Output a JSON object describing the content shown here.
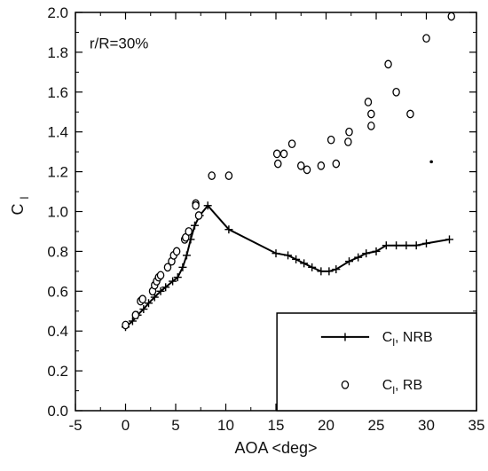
{
  "chart_data": {
    "type": "scatter",
    "xlabel": "AOA <deg>",
    "ylabel": {
      "main": "C",
      "sub": "l"
    },
    "annotation": "r/R=30%",
    "xlim": [
      -5,
      35
    ],
    "ylim": [
      0,
      2.0
    ],
    "xticks": [
      -5,
      0,
      5,
      10,
      15,
      20,
      25,
      30,
      35
    ],
    "yticks": [
      0.0,
      0.2,
      0.4,
      0.6,
      0.8,
      1.0,
      1.2,
      1.4,
      1.6,
      1.8,
      2.0
    ],
    "xtick_labels": [
      "-5",
      "0",
      "5",
      "10",
      "15",
      "20",
      "25",
      "30",
      "35"
    ],
    "ytick_labels": [
      "0.0",
      "0.2",
      "0.4",
      "0.6",
      "0.8",
      "1.0",
      "1.2",
      "1.4",
      "1.6",
      "1.8",
      "2.0"
    ],
    "grid": false,
    "legend_position": "bottom-right",
    "series": [
      {
        "name": "Cl, NRB",
        "legend_main": "C",
        "legend_sub": "l",
        "legend_rest": ", NRB",
        "marker": "plus",
        "line": true,
        "points": [
          [
            0.0,
            0.42
          ],
          [
            0.7,
            0.45
          ],
          [
            1.2,
            0.48
          ],
          [
            1.8,
            0.51
          ],
          [
            2.3,
            0.54
          ],
          [
            2.9,
            0.57
          ],
          [
            3.5,
            0.6
          ],
          [
            4.0,
            0.62
          ],
          [
            4.7,
            0.65
          ],
          [
            5.2,
            0.67
          ],
          [
            5.7,
            0.72
          ],
          [
            6.1,
            0.78
          ],
          [
            6.5,
            0.86
          ],
          [
            6.9,
            0.93
          ],
          [
            7.4,
            0.98
          ],
          [
            8.2,
            1.03
          ],
          [
            10.3,
            0.91
          ],
          [
            15.0,
            0.79
          ],
          [
            16.2,
            0.78
          ],
          [
            17.0,
            0.76
          ],
          [
            17.8,
            0.74
          ],
          [
            18.6,
            0.72
          ],
          [
            19.5,
            0.7
          ],
          [
            20.3,
            0.7
          ],
          [
            21.0,
            0.71
          ],
          [
            22.3,
            0.75
          ],
          [
            23.2,
            0.77
          ],
          [
            24.0,
            0.79
          ],
          [
            25.0,
            0.8
          ],
          [
            26.0,
            0.83
          ],
          [
            27.0,
            0.83
          ],
          [
            28.0,
            0.83
          ],
          [
            29.0,
            0.83
          ],
          [
            30.0,
            0.84
          ],
          [
            32.3,
            0.86
          ]
        ]
      },
      {
        "name": "Cl, RB",
        "legend_main": "C",
        "legend_sub": "l",
        "legend_rest": ", RB",
        "marker": "circle",
        "line": false,
        "points": [
          [
            0.0,
            0.43
          ],
          [
            1.0,
            0.48
          ],
          [
            1.5,
            0.55
          ],
          [
            1.7,
            0.56
          ],
          [
            2.7,
            0.6
          ],
          [
            2.9,
            0.63
          ],
          [
            3.1,
            0.65
          ],
          [
            3.3,
            0.67
          ],
          [
            3.5,
            0.68
          ],
          [
            4.2,
            0.72
          ],
          [
            4.6,
            0.75
          ],
          [
            4.8,
            0.78
          ],
          [
            5.1,
            0.8
          ],
          [
            5.9,
            0.86
          ],
          [
            6.0,
            0.87
          ],
          [
            6.3,
            0.9
          ],
          [
            7.0,
            1.04
          ],
          [
            7.0,
            1.03
          ],
          [
            7.3,
            0.98
          ],
          [
            8.6,
            1.18
          ],
          [
            10.3,
            1.18
          ],
          [
            15.1,
            1.29
          ],
          [
            15.2,
            1.24
          ],
          [
            15.8,
            1.29
          ],
          [
            16.6,
            1.34
          ],
          [
            17.5,
            1.23
          ],
          [
            18.1,
            1.21
          ],
          [
            19.5,
            1.23
          ],
          [
            20.5,
            1.36
          ],
          [
            21.0,
            1.24
          ],
          [
            22.2,
            1.35
          ],
          [
            22.3,
            1.4
          ],
          [
            24.2,
            1.55
          ],
          [
            24.5,
            1.49
          ],
          [
            24.5,
            1.43
          ],
          [
            26.2,
            1.74
          ],
          [
            27.0,
            1.6
          ],
          [
            28.4,
            1.49
          ],
          [
            30.0,
            1.87
          ],
          [
            32.5,
            1.98
          ]
        ]
      }
    ],
    "extra_marks": [
      {
        "kind": "dot",
        "x": 30.5,
        "y": 1.25
      }
    ]
  }
}
